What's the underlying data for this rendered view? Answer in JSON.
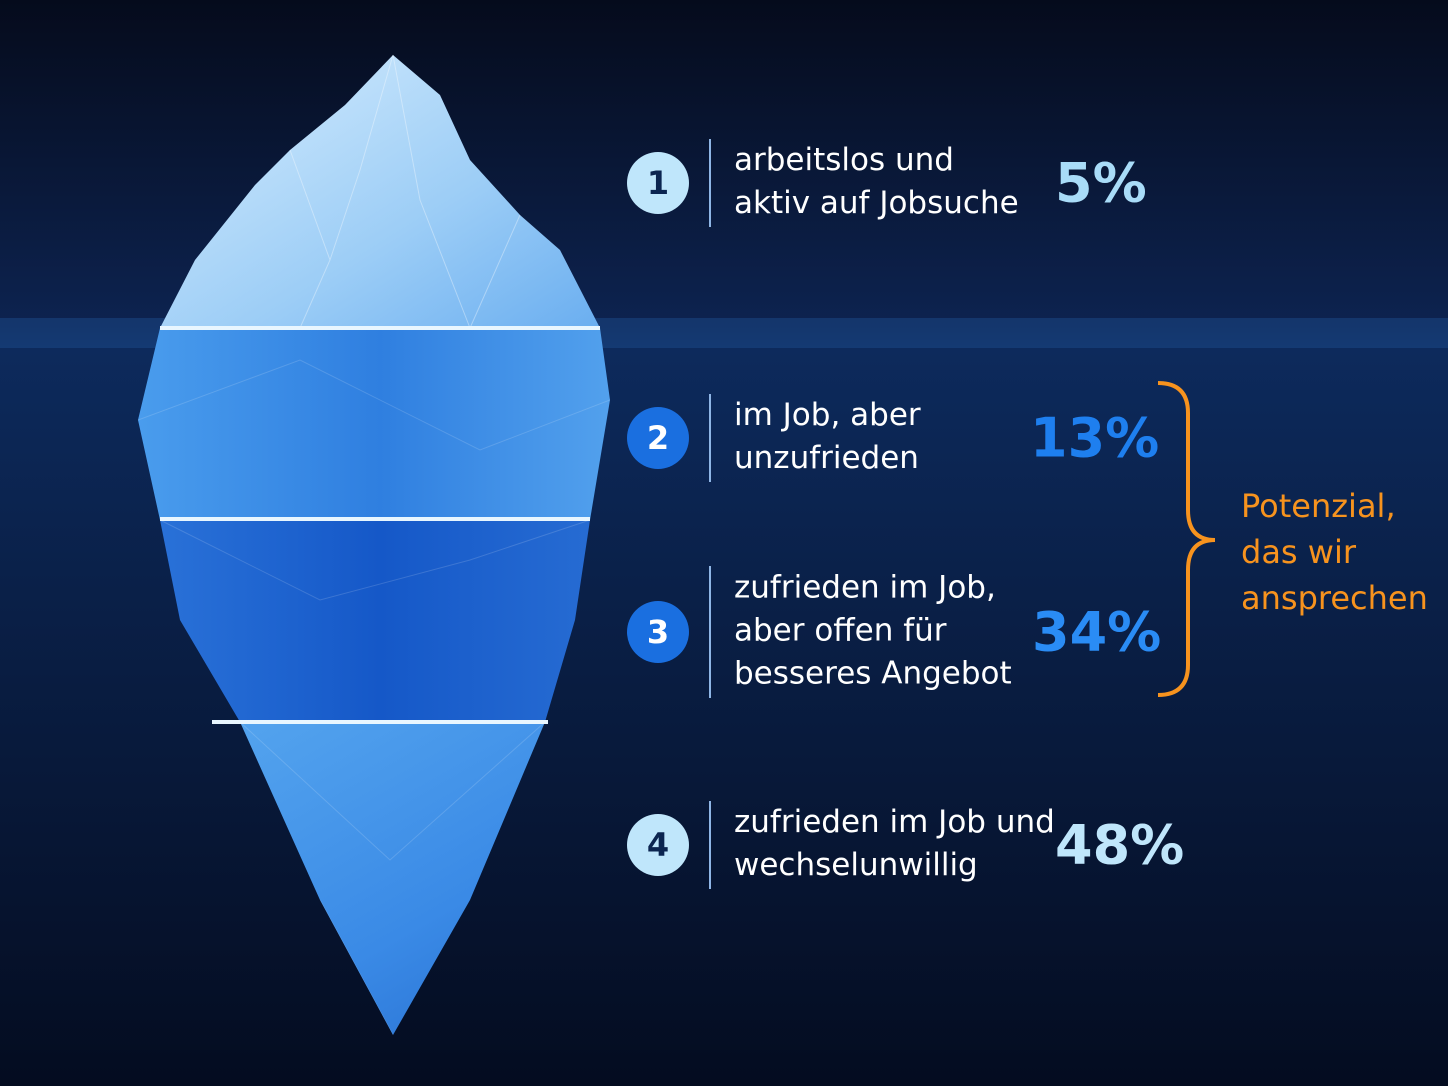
{
  "items": [
    {
      "number": 1,
      "label": [
        "arbeitslos und",
        "aktiv auf Jobsuche"
      ],
      "value": "5%"
    },
    {
      "number": 2,
      "label": [
        "im Job, aber",
        "unzufrieden"
      ],
      "value": "13%"
    },
    {
      "number": 3,
      "label": [
        "zufrieden im Job,",
        "aber offen für",
        "besseres Angebot"
      ],
      "value": "34%"
    },
    {
      "number": 4,
      "label": [
        "zufrieden im Job und",
        "wechselunwillig"
      ],
      "value": "48%"
    }
  ],
  "note": [
    "Potenzial,",
    "das wir",
    "ansprechen"
  ]
}
